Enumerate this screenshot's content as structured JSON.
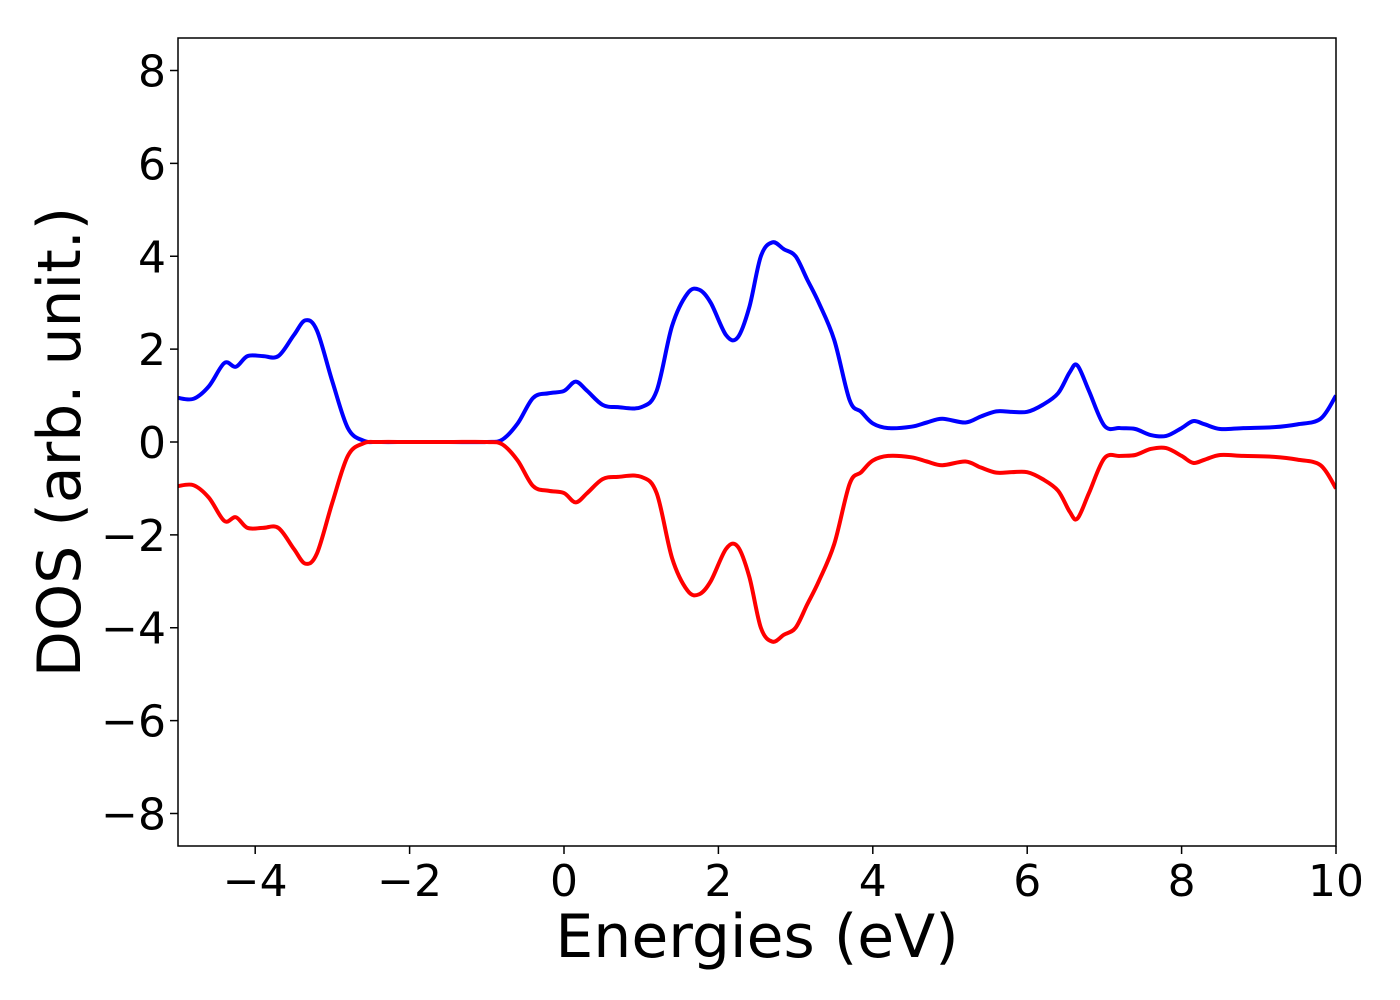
{
  "chart_data": {
    "type": "line",
    "title": "",
    "xlabel": "Energies (eV)",
    "ylabel": "DOS (arb. unit.)",
    "xlim": [
      -5,
      10
    ],
    "ylim": [
      -8.7,
      8.7
    ],
    "xticks": [
      -4,
      -2,
      0,
      2,
      4,
      6,
      8,
      10
    ],
    "xtick_labels": [
      "−4",
      "−2",
      "0",
      "2",
      "4",
      "6",
      "8",
      "10"
    ],
    "yticks": [
      8,
      6,
      4,
      2,
      0,
      -2,
      -4,
      -6,
      -8
    ],
    "ytick_labels": [
      "8",
      "6",
      "4",
      "2",
      "0",
      "−2",
      "−4",
      "−6",
      "−8"
    ],
    "grid": false,
    "series": [
      {
        "color": "#0000ff",
        "x": [
          -5.0,
          -4.8,
          -4.6,
          -4.4,
          -4.25,
          -4.1,
          -3.9,
          -3.7,
          -3.5,
          -3.35,
          -3.2,
          -3.0,
          -2.8,
          -2.6,
          -2.4,
          -2.0,
          -1.5,
          -1.0,
          -0.8,
          -0.6,
          -0.4,
          -0.2,
          0.0,
          0.15,
          0.3,
          0.5,
          0.7,
          1.0,
          1.2,
          1.4,
          1.6,
          1.75,
          1.9,
          2.1,
          2.25,
          2.4,
          2.55,
          2.7,
          2.85,
          3.0,
          3.15,
          3.3,
          3.5,
          3.7,
          3.85,
          4.0,
          4.2,
          4.5,
          4.7,
          4.9,
          5.2,
          5.4,
          5.6,
          5.8,
          6.0,
          6.2,
          6.4,
          6.55,
          6.65,
          6.8,
          7.0,
          7.2,
          7.4,
          7.6,
          7.8,
          8.0,
          8.15,
          8.3,
          8.5,
          8.8,
          9.2,
          9.5,
          9.8,
          10.0
        ],
        "values": [
          0.95,
          0.93,
          1.2,
          1.7,
          1.62,
          1.85,
          1.85,
          1.85,
          2.3,
          2.62,
          2.4,
          1.3,
          0.3,
          0.03,
          0.0,
          0.0,
          0.0,
          0.0,
          0.05,
          0.4,
          0.95,
          1.05,
          1.1,
          1.3,
          1.1,
          0.8,
          0.75,
          0.75,
          1.1,
          2.5,
          3.2,
          3.28,
          3.0,
          2.3,
          2.25,
          2.9,
          4.0,
          4.3,
          4.15,
          4.0,
          3.5,
          3.0,
          2.2,
          0.9,
          0.65,
          0.4,
          0.3,
          0.33,
          0.42,
          0.5,
          0.42,
          0.55,
          0.66,
          0.65,
          0.65,
          0.8,
          1.05,
          1.5,
          1.65,
          1.1,
          0.35,
          0.3,
          0.28,
          0.15,
          0.13,
          0.3,
          0.45,
          0.38,
          0.28,
          0.3,
          0.32,
          0.38,
          0.5,
          1.0
        ]
      },
      {
        "color": "#ff0000",
        "x": [
          -5.0,
          -4.8,
          -4.6,
          -4.4,
          -4.25,
          -4.1,
          -3.9,
          -3.7,
          -3.5,
          -3.35,
          -3.2,
          -3.0,
          -2.8,
          -2.6,
          -2.4,
          -2.0,
          -1.5,
          -1.0,
          -0.8,
          -0.6,
          -0.4,
          -0.2,
          0.0,
          0.15,
          0.3,
          0.5,
          0.7,
          1.0,
          1.2,
          1.4,
          1.6,
          1.75,
          1.9,
          2.1,
          2.25,
          2.4,
          2.55,
          2.7,
          2.85,
          3.0,
          3.15,
          3.3,
          3.5,
          3.7,
          3.85,
          4.0,
          4.2,
          4.5,
          4.7,
          4.9,
          5.2,
          5.4,
          5.6,
          5.8,
          6.0,
          6.2,
          6.4,
          6.55,
          6.65,
          6.8,
          7.0,
          7.2,
          7.4,
          7.6,
          7.8,
          8.0,
          8.15,
          8.3,
          8.5,
          8.8,
          9.2,
          9.5,
          9.8,
          10.0
        ],
        "values": [
          -0.95,
          -0.93,
          -1.2,
          -1.7,
          -1.62,
          -1.85,
          -1.85,
          -1.85,
          -2.3,
          -2.62,
          -2.4,
          -1.3,
          -0.3,
          -0.03,
          0.0,
          0.0,
          0.0,
          0.0,
          -0.05,
          -0.4,
          -0.95,
          -1.05,
          -1.1,
          -1.3,
          -1.1,
          -0.8,
          -0.75,
          -0.75,
          -1.1,
          -2.5,
          -3.2,
          -3.28,
          -3.0,
          -2.3,
          -2.25,
          -2.9,
          -4.0,
          -4.3,
          -4.15,
          -4.0,
          -3.5,
          -3.0,
          -2.2,
          -0.9,
          -0.65,
          -0.4,
          -0.3,
          -0.33,
          -0.42,
          -0.5,
          -0.42,
          -0.55,
          -0.66,
          -0.65,
          -0.65,
          -0.8,
          -1.05,
          -1.5,
          -1.65,
          -1.1,
          -0.35,
          -0.3,
          -0.28,
          -0.15,
          -0.13,
          -0.3,
          -0.45,
          -0.38,
          -0.28,
          -0.3,
          -0.32,
          -0.38,
          -0.5,
          -1.0
        ]
      }
    ]
  }
}
